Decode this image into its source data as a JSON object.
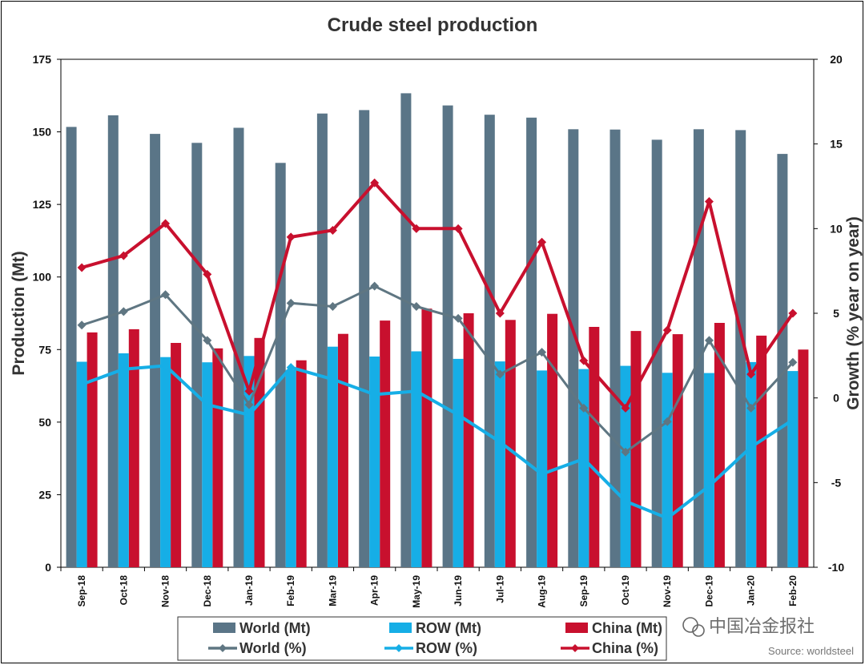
{
  "chart_data": {
    "type": "bar",
    "title": "Crude steel production",
    "ylabel": "Production (Mt)",
    "y2label": "Growth (% year on year)",
    "ylim": [
      0,
      175
    ],
    "y2lim": [
      -10,
      20
    ],
    "yticks": [
      0,
      25,
      50,
      75,
      100,
      125,
      150,
      175
    ],
    "y2ticks": [
      -10,
      -5,
      0,
      5,
      10,
      15,
      20
    ],
    "categories": [
      "Sep-18",
      "Oct-18",
      "Nov-18",
      "Dec-18",
      "Jan-19",
      "Feb-19",
      "Mar-19",
      "Apr-19",
      "May-19",
      "Jun-19",
      "Jul-19",
      "Aug-19",
      "Sep-19",
      "Oct-19",
      "Nov-19",
      "Dec-19",
      "Jan-20",
      "Feb-20"
    ],
    "series": [
      {
        "name": "World (Mt)",
        "type": "bar",
        "axis": "left",
        "color": "#5a7587",
        "values": [
          151.7,
          155.7,
          149.3,
          146.2,
          151.4,
          139.3,
          156.3,
          157.5,
          163.3,
          159.1,
          155.9,
          154.9,
          150.9,
          150.8,
          147.3,
          150.9,
          150.6,
          142.4
        ]
      },
      {
        "name": "ROW (Mt)",
        "type": "bar",
        "axis": "left",
        "color": "#16aee6",
        "values": [
          70.8,
          73.7,
          72.4,
          70.6,
          72.8,
          68.0,
          76.0,
          72.6,
          74.4,
          71.8,
          70.9,
          67.8,
          68.3,
          69.4,
          67.0,
          66.9,
          70.7,
          67.6
        ]
      },
      {
        "name": "China (Mt)",
        "type": "bar",
        "axis": "left",
        "color": "#c8102e",
        "values": [
          80.9,
          82.0,
          77.3,
          75.4,
          79.0,
          71.3,
          80.4,
          85.0,
          89.1,
          87.5,
          85.2,
          87.3,
          82.8,
          81.4,
          80.3,
          84.2,
          79.8,
          75.0
        ]
      },
      {
        "name": "World (%)",
        "type": "line",
        "axis": "right",
        "color": "#5f7682",
        "values": [
          4.3,
          5.1,
          6.1,
          3.4,
          -0.4,
          5.6,
          5.4,
          6.6,
          5.4,
          4.7,
          1.4,
          2.7,
          -0.6,
          -3.2,
          -1.4,
          3.4,
          -0.6,
          2.1
        ]
      },
      {
        "name": "ROW (%)",
        "type": "line",
        "axis": "right",
        "color": "#16aee6",
        "values": [
          0.8,
          1.7,
          1.9,
          -0.4,
          -1.0,
          1.8,
          1.1,
          0.2,
          0.4,
          -1.0,
          -2.6,
          -4.5,
          -3.6,
          -6.1,
          -7.1,
          -5.2,
          -2.9,
          -1.3
        ]
      },
      {
        "name": "China (%)",
        "type": "line",
        "axis": "right",
        "color": "#c8102e",
        "values": [
          7.7,
          8.4,
          10.3,
          7.3,
          0.4,
          9.5,
          9.9,
          12.7,
          10.0,
          10.0,
          5.0,
          9.2,
          2.2,
          -0.6,
          4.0,
          11.6,
          1.4,
          5.0
        ]
      }
    ],
    "legend": "bottom",
    "grid": false
  },
  "source": "Source: worldsteel",
  "watermark": "中国冶金报社"
}
